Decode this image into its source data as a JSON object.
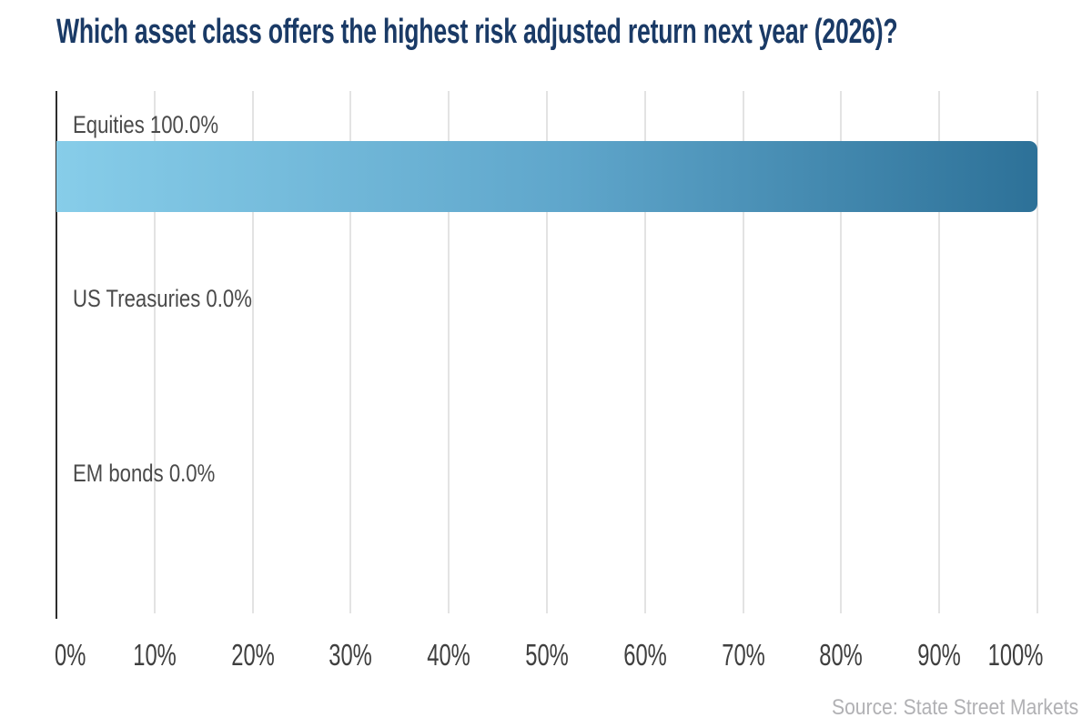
{
  "title": "Which asset class offers the highest risk adjusted return next year (2026)?",
  "source": "Source: State Street Markets",
  "chart_data": {
    "type": "bar",
    "orientation": "horizontal",
    "title": "Which asset class offers the highest risk adjusted return next year (2026)?",
    "categories": [
      "Equities",
      "US Treasuries",
      "EM bonds"
    ],
    "values": [
      100.0,
      0.0,
      0.0
    ],
    "bar_labels": [
      "Equities 100.0%",
      "US Treasuries 0.0%",
      "EM bonds 0.0%"
    ],
    "xlabel": "",
    "ylabel": "",
    "xlim": [
      0,
      100
    ],
    "x_tick_labels": [
      "0%",
      "10%",
      "20%",
      "30%",
      "40%",
      "50%",
      "60%",
      "70%",
      "80%",
      "90%",
      "100%"
    ],
    "grid": true,
    "legend": false,
    "annotations": [
      "Source: State Street Markets"
    ]
  },
  "colors": {
    "title": "#1a3a66",
    "category_label": "#4a4a4a",
    "tick_label": "#3f3f3f",
    "source_text": "#b1b1b4",
    "gridline": "#e3e3e3",
    "axis_line": "#2d2d2d",
    "bar_gradient_start": "#87cde9",
    "bar_gradient_mid": "#5fa6cb",
    "bar_gradient_end": "#2d7198",
    "background": "#ffffff"
  }
}
